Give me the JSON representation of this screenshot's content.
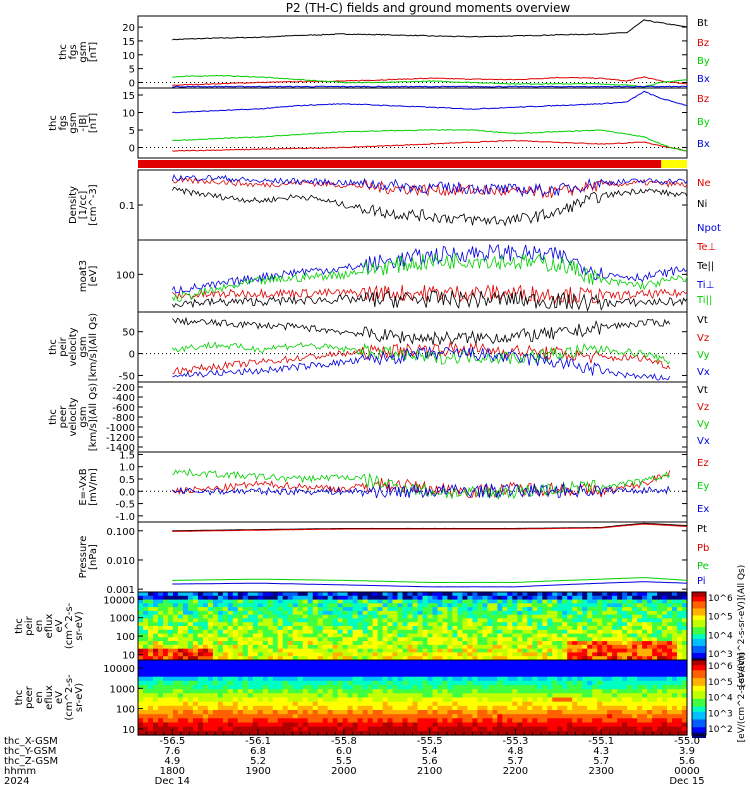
{
  "title": "P2 (TH-C) fields and ground moments overview",
  "time_axis": {
    "hhmm_ticks": [
      "1800",
      "1900",
      "2000",
      "2100",
      "2200",
      "2300",
      "0000"
    ],
    "date_labels": [
      "Dec 14",
      "Dec 15"
    ],
    "row_labels": [
      "thc_X-GSM",
      "thc_Y-GSM",
      "thc_Z-GSM",
      "hhmm",
      "2024"
    ],
    "x_gsm": [
      "-56.5",
      "-56.1",
      "-55.8",
      "-55.5",
      "-55.3",
      "-55.1",
      "-55.0"
    ],
    "y_gsm": [
      "7.6",
      "6.8",
      "6.0",
      "5.4",
      "4.8",
      "4.3",
      "3.9"
    ],
    "z_gsm": [
      "4.9",
      "5.2",
      "5.5",
      "5.6",
      "5.7",
      "5.7",
      "5.6"
    ]
  },
  "colors": {
    "black": "#000000",
    "red": "#e00000",
    "green": "#00d000",
    "blue": "#0000e0",
    "yellow": "#ffff00"
  },
  "chart_data": [
    {
      "type": "line",
      "panel": "fgs_gsm",
      "ylabel": [
        "thc",
        "fgs",
        "gsm",
        "[nT]"
      ],
      "ticks": [
        "0",
        "5",
        "10",
        "15",
        "20"
      ],
      "ylim": [
        -2,
        24
      ],
      "series": [
        {
          "name": "Bt",
          "color": "#000000",
          "x": [
            18.0,
            18.5,
            19.0,
            19.5,
            20.0,
            20.5,
            21.0,
            21.5,
            22.0,
            22.5,
            23.0,
            23.3,
            23.5,
            23.7,
            24.0
          ],
          "values": [
            15.5,
            16,
            16.3,
            17,
            17.5,
            17.2,
            16.8,
            16.5,
            16.8,
            17.2,
            17.5,
            18,
            22.5,
            21.5,
            20
          ]
        },
        {
          "name": "Bz",
          "color": "#e00000",
          "x": [
            18.0,
            18.5,
            19.0,
            19.5,
            20.0,
            20.5,
            21.0,
            21.5,
            22.0,
            22.5,
            23.0,
            23.3,
            23.5,
            23.7,
            24.0
          ],
          "values": [
            -1,
            -0.5,
            0,
            0.3,
            0.5,
            1,
            1.5,
            1.2,
            1,
            1.8,
            1.5,
            0.5,
            2,
            0.5,
            -0.5
          ]
        },
        {
          "name": "By",
          "color": "#00d000",
          "x": [
            18.0,
            18.5,
            19.0,
            19.5,
            20.0,
            20.5,
            21.0,
            21.5,
            22.0,
            22.5,
            23.0,
            23.3,
            23.5,
            23.7,
            24.0
          ],
          "values": [
            2,
            2.5,
            2,
            1,
            0,
            0,
            0.5,
            0,
            -0.5,
            -0.5,
            -0.5,
            -1,
            -1.5,
            0,
            1
          ]
        },
        {
          "name": "Bx",
          "color": "#0000e0",
          "x": [
            18.0,
            24.0
          ],
          "values": [
            -1.5,
            -1.5
          ]
        }
      ]
    },
    {
      "type": "line",
      "panel": "fgs_gsm_minus_bt",
      "ylabel": [
        "thc",
        "fgs",
        "gsm",
        "-|B|",
        "[nT]"
      ],
      "ticks": [
        "0",
        "5",
        "10",
        "15"
      ],
      "ylim": [
        -3,
        17
      ],
      "series": [
        {
          "name": "Bz",
          "color": "#e00000",
          "x": [
            18.0,
            19.0,
            20.0,
            21.0,
            21.5,
            22.0,
            22.5,
            23.0,
            23.5,
            23.8,
            24.0
          ],
          "values": [
            -1,
            -0.5,
            0,
            1,
            1.5,
            2,
            1.5,
            1,
            1.5,
            0,
            -1
          ]
        },
        {
          "name": "By",
          "color": "#00d000",
          "x": [
            18.0,
            19.0,
            20.0,
            21.0,
            21.5,
            22.0,
            22.5,
            23.0,
            23.5,
            23.8,
            24.0
          ],
          "values": [
            2,
            3,
            4.5,
            5,
            5,
            4,
            4.5,
            5,
            3,
            0,
            -1
          ]
        },
        {
          "name": "Bx",
          "color": "#0000e0",
          "x": [
            18.0,
            18.5,
            19.0,
            19.5,
            20.0,
            20.5,
            21.0,
            21.5,
            22.0,
            22.5,
            23.0,
            23.3,
            23.5,
            23.7,
            24.0
          ],
          "values": [
            10,
            10.5,
            11,
            12,
            12.5,
            12,
            11.5,
            11,
            11.5,
            12,
            12.5,
            13,
            16,
            14,
            12
          ]
        }
      ]
    },
    {
      "type": "line",
      "panel": "density",
      "yscale": "log",
      "ylabel": [
        "Density",
        "[1/cc]",
        "[cm^-3]"
      ],
      "ticks": [
        "0.1"
      ],
      "ylim": [
        0.02,
        0.5
      ],
      "series": [
        {
          "name": "Ne",
          "color": "#e00000",
          "x": [
            18.0,
            18.5,
            19.0,
            19.5,
            20.0,
            20.5,
            21.0,
            21.5,
            22.0,
            22.5,
            23.0,
            23.5,
            24.0
          ],
          "values": [
            0.3,
            0.3,
            0.25,
            0.28,
            0.25,
            0.22,
            0.2,
            0.2,
            0.18,
            0.18,
            0.25,
            0.28,
            0.25
          ]
        },
        {
          "name": "Ni",
          "color": "#000000",
          "x": [
            18.0,
            18.5,
            19.0,
            19.5,
            20.0,
            20.5,
            21.0,
            21.5,
            22.0,
            22.5,
            23.0,
            23.5,
            24.0
          ],
          "values": [
            0.2,
            0.15,
            0.12,
            0.15,
            0.1,
            0.07,
            0.06,
            0.05,
            0.05,
            0.07,
            0.15,
            0.2,
            0.15
          ]
        },
        {
          "name": "Npot",
          "color": "#0000e0",
          "x": [
            18.0,
            18.5,
            19.0,
            19.5,
            20.0,
            20.5,
            21.0,
            21.5,
            22.0,
            22.5,
            23.0,
            23.5,
            24.0
          ],
          "values": [
            0.35,
            0.35,
            0.3,
            0.3,
            0.28,
            0.25,
            0.22,
            0.22,
            0.2,
            0.2,
            0.28,
            0.3,
            0.3
          ]
        }
      ]
    },
    {
      "type": "line",
      "panel": "temperature",
      "yscale": "log",
      "ylabel": [
        "moat3",
        "[eV]"
      ],
      "ticks": [
        "100"
      ],
      "ylim": [
        30,
        300
      ],
      "series": [
        {
          "name": "Te⊥",
          "color": "#e00000",
          "x": [
            18.0,
            19.0,
            20.0,
            21.0,
            22.0,
            23.0,
            24.0
          ],
          "values": [
            50,
            55,
            55,
            55,
            55,
            50,
            55
          ]
        },
        {
          "name": "Te||",
          "color": "#000000",
          "x": [
            18.0,
            19.0,
            20.0,
            21.0,
            22.0,
            23.0,
            24.0
          ],
          "values": [
            40,
            42,
            45,
            45,
            45,
            40,
            42
          ]
        },
        {
          "name": "Ti⊥",
          "color": "#0000e0",
          "x": [
            18.0,
            18.5,
            19.0,
            19.5,
            20.0,
            20.5,
            21.0,
            21.5,
            22.0,
            22.5,
            23.0,
            23.5,
            24.0
          ],
          "values": [
            60,
            70,
            90,
            110,
            120,
            150,
            180,
            200,
            200,
            180,
            100,
            90,
            120
          ]
        },
        {
          "name": "Ti||",
          "color": "#00d000",
          "x": [
            18.0,
            18.5,
            19.0,
            19.5,
            20.0,
            20.5,
            21.0,
            21.5,
            22.0,
            22.5,
            23.0,
            23.5,
            24.0
          ],
          "values": [
            45,
            60,
            80,
            90,
            100,
            130,
            150,
            160,
            150,
            140,
            80,
            70,
            90
          ]
        }
      ]
    },
    {
      "type": "line",
      "panel": "peir_velocity",
      "ylabel": [
        "thc",
        "peir",
        "velocity",
        "gsm",
        "[km/s](All Qs)"
      ],
      "ticks": [
        "-50",
        "0",
        "50"
      ],
      "ylim": [
        -65,
        95
      ],
      "series": [
        {
          "name": "Vt",
          "color": "#000000",
          "x": [
            18.0,
            18.5,
            19.0,
            19.5,
            20.0,
            20.5,
            21.0,
            21.5,
            22.0,
            22.5,
            23.0,
            23.5,
            23.8
          ],
          "values": [
            75,
            70,
            65,
            60,
            50,
            40,
            35,
            35,
            40,
            45,
            60,
            70,
            70
          ]
        },
        {
          "name": "Vz",
          "color": "#e00000",
          "x": [
            18.0,
            18.5,
            19.0,
            19.5,
            20.0,
            20.5,
            21.0,
            21.5,
            22.0,
            22.5,
            23.0,
            23.5,
            23.8
          ],
          "values": [
            -40,
            -30,
            -20,
            -10,
            0,
            5,
            10,
            10,
            5,
            0,
            -10,
            -10,
            -30
          ]
        },
        {
          "name": "Vy",
          "color": "#00d000",
          "x": [
            18.0,
            18.5,
            19.0,
            19.5,
            20.0,
            20.5,
            21.0,
            21.5,
            22.0,
            22.5,
            23.0,
            23.5,
            23.8
          ],
          "values": [
            10,
            20,
            10,
            20,
            10,
            0,
            -10,
            -5,
            -10,
            0,
            10,
            0,
            -20
          ]
        },
        {
          "name": "Vx",
          "color": "#0000e0",
          "x": [
            18.0,
            18.5,
            19.0,
            19.5,
            20.0,
            20.5,
            21.0,
            21.5,
            22.0,
            22.5,
            23.0,
            23.5,
            23.8
          ],
          "values": [
            -50,
            -45,
            -40,
            -30,
            -20,
            -10,
            0,
            0,
            -10,
            -20,
            -40,
            -55,
            -55
          ]
        }
      ]
    },
    {
      "type": "line",
      "panel": "peer_velocity",
      "ylabel": [
        "thc",
        "peer",
        "velocity",
        "gsm",
        "[km/s](All Qs)"
      ],
      "ticks": [
        "-1400",
        "-1200",
        "-1000",
        "-800",
        "-600",
        "-400",
        "-200"
      ],
      "ylim": [
        -1500,
        -100
      ],
      "series": [
        {
          "name": "Vt",
          "color": "#000000",
          "x": [],
          "values": []
        },
        {
          "name": "Vz",
          "color": "#e00000",
          "x": [],
          "values": []
        },
        {
          "name": "Vy",
          "color": "#00d000",
          "x": [],
          "values": []
        },
        {
          "name": "Vx",
          "color": "#0000e0",
          "x": [],
          "values": []
        }
      ]
    },
    {
      "type": "line",
      "panel": "efield",
      "ylabel": [
        "E=-VxB",
        "[mV/m]"
      ],
      "ticks": [
        "-1.0",
        "-0.5",
        "0.0",
        "0.5",
        "1.0",
        "1.5"
      ],
      "ylim": [
        -1.25,
        1.6
      ],
      "series": [
        {
          "name": "Ez",
          "color": "#e00000",
          "x": [
            18.0,
            18.5,
            19.0,
            19.5,
            20.0,
            20.5,
            21.0,
            21.5,
            22.0,
            22.5,
            23.0,
            23.5,
            23.8
          ],
          "values": [
            0.0,
            0.1,
            0.3,
            0.2,
            0.1,
            0.3,
            0.1,
            0.0,
            0.1,
            0.1,
            0.0,
            0.3,
            0.8
          ]
        },
        {
          "name": "Ey",
          "color": "#00d000",
          "x": [
            18.0,
            18.5,
            19.0,
            19.5,
            20.0,
            20.5,
            21.0,
            21.5,
            22.0,
            22.5,
            23.0,
            23.5,
            23.8
          ],
          "values": [
            0.8,
            0.7,
            0.6,
            0.5,
            0.6,
            0.3,
            0.0,
            -0.1,
            0.0,
            0.1,
            0.2,
            0.4,
            0.7
          ]
        },
        {
          "name": "Ex",
          "color": "#0000e0",
          "x": [
            18.0,
            20.5,
            23.8
          ],
          "values": [
            0.0,
            0.0,
            0.05
          ]
        }
      ]
    },
    {
      "type": "line",
      "panel": "pressure",
      "yscale": "log",
      "ylabel": [
        "Pressure",
        "[nPa]"
      ],
      "ticks": [
        "0.001",
        "0.010",
        "0.100"
      ],
      "ylim": [
        0.0008,
        0.2
      ],
      "series": [
        {
          "name": "Pt",
          "color": "#000000",
          "x": [
            18.0,
            19.0,
            20.0,
            21.0,
            22.0,
            23.0,
            23.5,
            24.0
          ],
          "values": [
            0.1,
            0.11,
            0.12,
            0.12,
            0.12,
            0.13,
            0.18,
            0.15
          ]
        },
        {
          "name": "Pb",
          "color": "#e00000",
          "x": [
            18.0,
            19.0,
            20.0,
            21.0,
            22.0,
            23.0,
            23.5,
            24.0
          ],
          "values": [
            0.095,
            0.105,
            0.115,
            0.115,
            0.115,
            0.125,
            0.17,
            0.14
          ]
        },
        {
          "name": "Pe",
          "color": "#00d000",
          "x": [
            18.0,
            19.0,
            20.0,
            21.0,
            22.0,
            23.0,
            23.5,
            24.0
          ],
          "values": [
            0.002,
            0.0022,
            0.002,
            0.0017,
            0.0017,
            0.0022,
            0.0025,
            0.002
          ]
        },
        {
          "name": "Pi",
          "color": "#0000e0",
          "x": [
            18.0,
            19.0,
            20.0,
            21.0,
            22.0,
            23.0,
            23.5,
            24.0
          ],
          "values": [
            0.0015,
            0.0016,
            0.0014,
            0.0012,
            0.0012,
            0.0016,
            0.0018,
            0.0016
          ]
        }
      ]
    },
    {
      "type": "heatmap",
      "panel": "peir_en_eflux",
      "yscale": "log",
      "ylabel": [
        "thc",
        "peir",
        "en",
        "eflux",
        "eV",
        "(cm^2-s-",
        "sr-eV)"
      ],
      "ticks": [
        "10",
        "100",
        "1000",
        "10000"
      ],
      "colorbar": {
        "label": "[eV/(cm^2-s-sr-eV)](All Qs)",
        "ticks": [
          "10^3",
          "10^4",
          "10^5",
          "10^6"
        ]
      }
    },
    {
      "type": "heatmap",
      "panel": "peer_en_eflux",
      "yscale": "log",
      "ylabel": [
        "thc",
        "peer",
        "en",
        "eflux",
        "eV",
        "(cm^2-s-",
        "sr-eV)"
      ],
      "ticks": [
        "10",
        "100",
        "1000",
        "10000"
      ],
      "colorbar": {
        "label": "[eV/(cm^2-s-sr-eV)]",
        "ticks": [
          "10^2",
          "10^3",
          "10^4",
          "10^5",
          "10^6"
        ]
      }
    }
  ]
}
